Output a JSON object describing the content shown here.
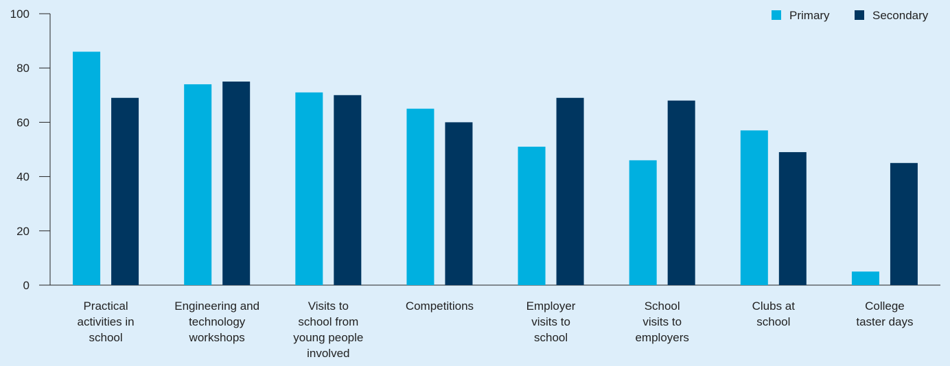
{
  "chart_data": {
    "type": "bar",
    "title": "",
    "xlabel": "",
    "ylabel": "",
    "ylim": [
      0,
      100
    ],
    "yticks": [
      0,
      20,
      40,
      60,
      80,
      100
    ],
    "grid": false,
    "legend_position": "top-right",
    "categories": [
      [
        "Practical",
        "activities in",
        "school"
      ],
      [
        "Engineering and",
        "technology",
        "workshops"
      ],
      [
        "Visits to",
        "school from",
        "young people",
        "involved"
      ],
      [
        "Competitions"
      ],
      [
        "Employer",
        "visits to",
        "school"
      ],
      [
        "School",
        "visits to",
        "employers"
      ],
      [
        "Clubs at",
        "school"
      ],
      [
        "College",
        "taster days"
      ]
    ],
    "series": [
      {
        "name": "Primary",
        "color": "#00b0e0",
        "values": [
          86,
          74,
          71,
          65,
          51,
          46,
          57,
          5
        ]
      },
      {
        "name": "Secondary",
        "color": "#003660",
        "values": [
          69,
          75,
          70,
          60,
          69,
          68,
          49,
          45
        ]
      }
    ]
  }
}
